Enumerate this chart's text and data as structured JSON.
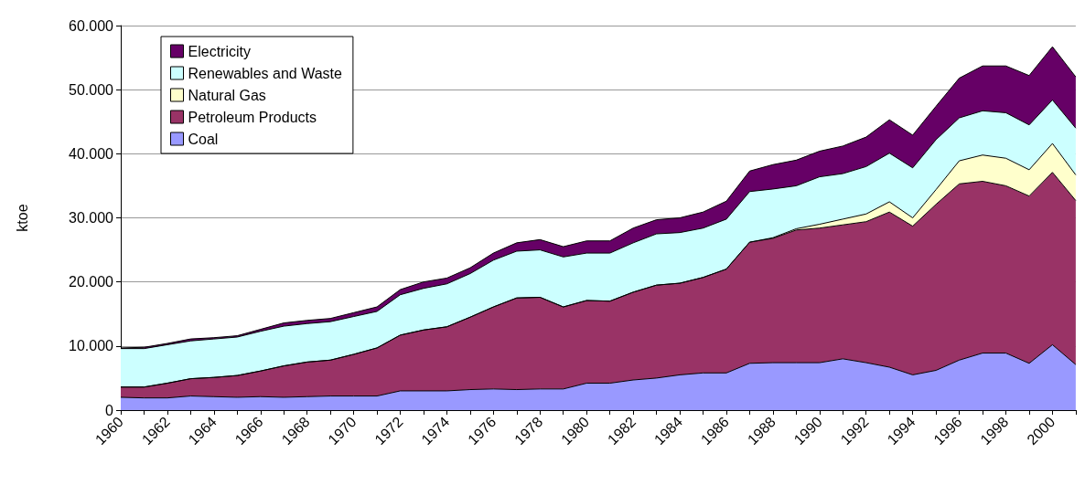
{
  "chart_data": {
    "type": "area",
    "stacked": true,
    "ylabel": "ktoe",
    "categories": [
      "1960",
      null,
      "1962",
      null,
      "1964",
      null,
      "1966",
      null,
      "1968",
      null,
      "1970",
      null,
      "1972",
      null,
      "1974",
      null,
      "1976",
      null,
      "1978",
      null,
      "1980",
      null,
      "1982",
      null,
      "1984",
      null,
      "1986",
      null,
      "1988",
      null,
      "1990",
      null,
      "1992",
      null,
      "1994",
      null,
      "1996",
      null,
      "1998",
      null,
      "2000",
      null
    ],
    "series": [
      {
        "name": "Coal",
        "color": "#9999ff",
        "values": [
          2000,
          1900,
          1900,
          2200,
          2100,
          2000,
          2100,
          2000,
          2100,
          2200,
          2200,
          2200,
          3000,
          3000,
          3000,
          3200,
          3300,
          3200,
          3300,
          3300,
          4200,
          4200,
          4700,
          5000,
          5500,
          5800,
          5800,
          7300,
          7400,
          7400,
          7400,
          8000,
          7400,
          6700,
          5500,
          6200,
          7800,
          8900,
          8900,
          7300,
          10200,
          7100
        ]
      },
      {
        "name": "Petroleum Products",
        "color": "#993366",
        "values": [
          1600,
          1700,
          2300,
          2700,
          3000,
          3400,
          4000,
          4900,
          5400,
          5600,
          6500,
          7500,
          8700,
          9500,
          10000,
          11300,
          12800,
          14300,
          14300,
          12800,
          12900,
          12800,
          13700,
          14500,
          14300,
          14900,
          16200,
          18900,
          19400,
          20700,
          21000,
          20900,
          22000,
          24200,
          23200,
          25900,
          27500,
          26800,
          26100,
          26100,
          26900,
          25600
        ]
      },
      {
        "name": "Natural Gas",
        "color": "#ffffcc",
        "values": [
          0,
          0,
          0,
          0,
          0,
          0,
          0,
          0,
          0,
          0,
          0,
          0,
          0,
          0,
          0,
          0,
          0,
          0,
          0,
          0,
          0,
          0,
          0,
          0,
          0,
          0,
          0,
          0,
          100,
          200,
          600,
          900,
          1200,
          1600,
          1300,
          2300,
          3600,
          4100,
          4300,
          4100,
          4500,
          4000
        ]
      },
      {
        "name": "Renewables and Waste",
        "color": "#ccffff",
        "values": [
          6000,
          6000,
          6000,
          5900,
          6000,
          6000,
          6200,
          6200,
          6000,
          6000,
          5900,
          5700,
          6300,
          6500,
          6700,
          6800,
          7300,
          7300,
          7400,
          7800,
          7400,
          7500,
          7700,
          8000,
          7900,
          7700,
          7800,
          7900,
          7600,
          6700,
          7400,
          7100,
          7400,
          7600,
          7800,
          7800,
          6700,
          6900,
          7100,
          7000,
          6800,
          7300
        ]
      },
      {
        "name": "Electricity",
        "color": "#660066",
        "values": [
          100,
          200,
          200,
          300,
          200,
          200,
          300,
          500,
          500,
          500,
          600,
          700,
          800,
          1000,
          900,
          900,
          1100,
          1300,
          1600,
          1600,
          1900,
          1900,
          2300,
          2200,
          2300,
          2500,
          2800,
          3200,
          3800,
          4000,
          4000,
          4300,
          4600,
          5200,
          5100,
          5200,
          6200,
          7000,
          7300,
          7700,
          8300,
          8000
        ]
      }
    ],
    "ylim": [
      0,
      60000
    ],
    "yticks": [
      {
        "value": 0,
        "label": "0"
      },
      {
        "value": 10000,
        "label": "10.000"
      },
      {
        "value": 20000,
        "label": "20.000"
      },
      {
        "value": 30000,
        "label": "30.000"
      },
      {
        "value": 40000,
        "label": "40.000"
      },
      {
        "value": 50000,
        "label": "50.000"
      },
      {
        "value": 60000,
        "label": "60.000"
      }
    ],
    "grid": "y",
    "legend": "top left"
  }
}
